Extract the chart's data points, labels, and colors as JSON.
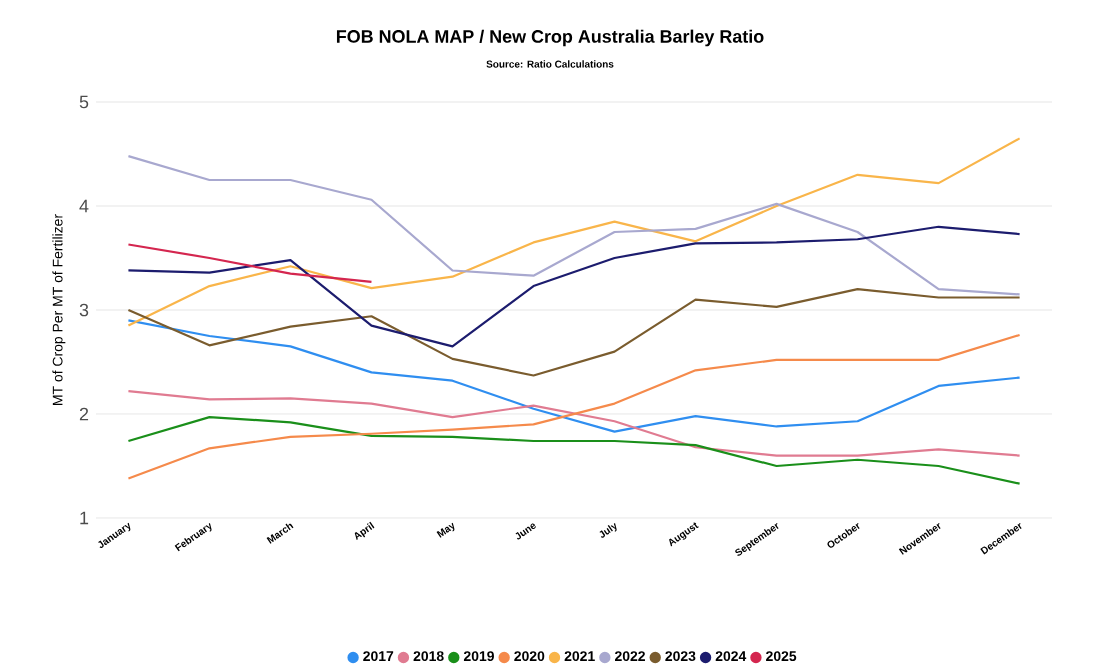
{
  "chart_data": {
    "type": "line",
    "title": "FOB NOLA MAP / New Crop Australia Barley Ratio",
    "subtitle": "Source: Ratio Calculations",
    "ylabel": "MT of Crop Per MT of Fertilizer",
    "categories": [
      "January",
      "February",
      "March",
      "April",
      "May",
      "June",
      "July",
      "August",
      "September",
      "October",
      "November",
      "December"
    ],
    "ylim": [
      1,
      5
    ],
    "yticks": [
      1,
      2,
      3,
      4,
      5
    ],
    "grid": "y",
    "legend": "bottom",
    "marker": "none",
    "line_style": "solid",
    "series": [
      {
        "name": "2017",
        "color": "#2f8ef0",
        "values": [
          2.9,
          2.75,
          2.65,
          2.4,
          2.32,
          2.05,
          1.83,
          1.98,
          1.88,
          1.93,
          2.27,
          2.35
        ]
      },
      {
        "name": "2018",
        "color": "#e07b91",
        "values": [
          2.22,
          2.14,
          2.15,
          2.1,
          1.97,
          2.08,
          1.93,
          1.68,
          1.6,
          1.6,
          1.66,
          1.6
        ]
      },
      {
        "name": "2019",
        "color": "#1a8f1a",
        "values": [
          1.74,
          1.97,
          1.92,
          1.79,
          1.78,
          1.74,
          1.74,
          1.7,
          1.5,
          1.56,
          1.5,
          1.33
        ]
      },
      {
        "name": "2020",
        "color": "#f58a4b",
        "values": [
          1.38,
          1.67,
          1.78,
          1.81,
          1.85,
          1.9,
          2.1,
          2.42,
          2.52,
          2.52,
          2.52,
          2.76
        ]
      },
      {
        "name": "2021",
        "color": "#f9b54a",
        "values": [
          2.85,
          3.23,
          3.42,
          3.21,
          3.32,
          3.65,
          3.85,
          3.66,
          4.0,
          4.3,
          4.22,
          4.65
        ]
      },
      {
        "name": "2022",
        "color": "#a8a8cf",
        "values": [
          4.48,
          4.25,
          4.25,
          4.06,
          3.38,
          3.33,
          3.75,
          3.78,
          4.02,
          3.75,
          3.2,
          3.15
        ]
      },
      {
        "name": "2023",
        "color": "#7a5c2e",
        "values": [
          3.0,
          2.66,
          2.84,
          2.94,
          2.53,
          2.37,
          2.6,
          3.1,
          3.03,
          3.2,
          3.12,
          3.12
        ]
      },
      {
        "name": "2024",
        "color": "#1c1c6e",
        "values": [
          3.38,
          3.36,
          3.48,
          2.85,
          2.65,
          3.23,
          3.5,
          3.64,
          3.65,
          3.68,
          3.8,
          3.73
        ]
      },
      {
        "name": "2025",
        "color": "#d4264f",
        "values": [
          3.63,
          3.5,
          3.35,
          3.27,
          null,
          null,
          null,
          null,
          null,
          null,
          null,
          null
        ]
      }
    ]
  }
}
